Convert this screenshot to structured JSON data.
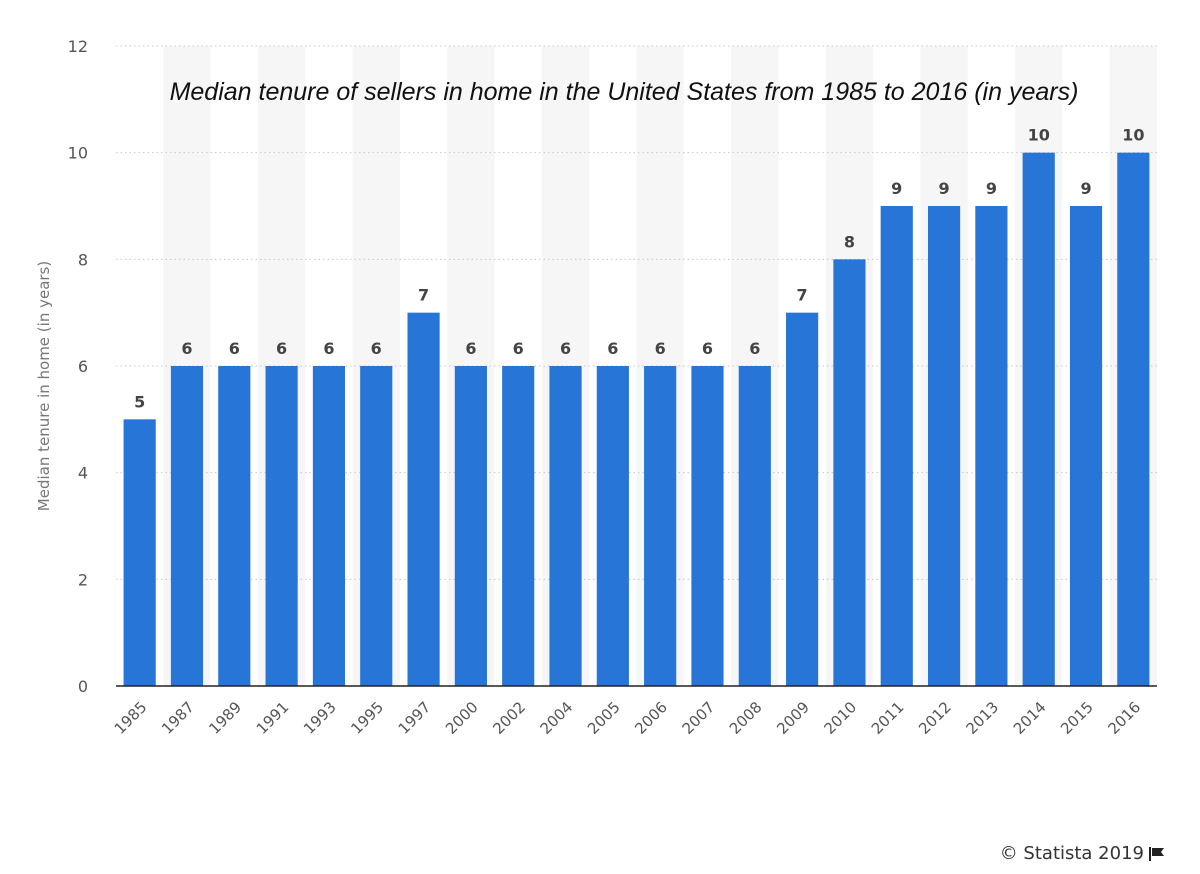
{
  "chart_data": {
    "type": "bar",
    "title": "Median tenure of sellers in home in the United States from 1985 to 2016 (in years)",
    "xlabel": "",
    "ylabel": "Median tenure in home (in years)",
    "ylim": [
      0,
      12
    ],
    "yticks": [
      0,
      2,
      4,
      6,
      8,
      10,
      12
    ],
    "grid": true,
    "legend": "none",
    "bar_color": "#2875d8",
    "categories": [
      "1985",
      "1987",
      "1989",
      "1991",
      "1993",
      "1995",
      "1997",
      "2000",
      "2002",
      "2004",
      "2005",
      "2006",
      "2007",
      "2008",
      "2009",
      "2010",
      "2011",
      "2012",
      "2013",
      "2014",
      "2015",
      "2016"
    ],
    "values": [
      5,
      6,
      6,
      6,
      6,
      6,
      7,
      6,
      6,
      6,
      6,
      6,
      6,
      6,
      7,
      8,
      9,
      9,
      9,
      10,
      9,
      10
    ]
  },
  "footer": {
    "copyright": "© Statista 2019",
    "flag_icon": "flag-icon"
  }
}
